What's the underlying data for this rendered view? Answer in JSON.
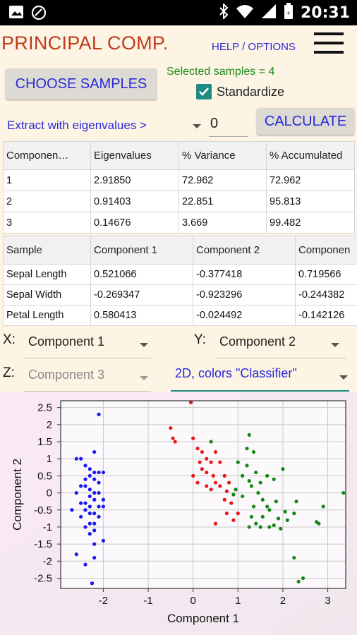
{
  "status_bar": {
    "time": "20:31",
    "icons": [
      "image-icon",
      "sync-icon",
      "bluetooth-icon",
      "wifi-icon",
      "signal-icon",
      "battery-icon"
    ]
  },
  "app": {
    "title": "PRINCIPAL COMP.",
    "help_label": "HELP / OPTIONS"
  },
  "controls": {
    "choose_samples_label": "CHOOSE SAMPLES",
    "selected_samples_text": "Selected samples = 4",
    "standardize_label": "Standardize",
    "standardize_checked": true,
    "extract_label": "Extract with eigenvalues >",
    "eigen_threshold": "0",
    "calculate_label": "CALCULATE"
  },
  "eigen_table": {
    "headers": [
      "Componen…",
      "Eigenvalues",
      "% Variance",
      "% Accumulated"
    ],
    "rows": [
      [
        "1",
        "2.91850",
        "72.962",
        "72.962"
      ],
      [
        "2",
        "0.91403",
        "22.851",
        "95.813"
      ],
      [
        "3",
        "0.14676",
        "3.669",
        "99.482"
      ]
    ]
  },
  "loadings_table": {
    "headers": [
      "Sample",
      "Component 1",
      "Component 2",
      "Componen"
    ],
    "rows": [
      [
        "Sepal Length",
        "0.521066",
        "-0.377418",
        "0.719566"
      ],
      [
        "Sepal Width",
        "-0.269347",
        "-0.923296",
        "-0.244382"
      ],
      [
        "Petal Length",
        "0.580413",
        "-0.024492",
        "-0.142126"
      ]
    ]
  },
  "axes_select": {
    "x_label": "X:",
    "x_value": "Component 1",
    "y_label": "Y:",
    "y_value": "Component 2",
    "z_label": "Z:",
    "z_value": "Component 3",
    "mode_value": "2D, colors \"Classifier\""
  },
  "colors": {
    "accent": "#1e8a84",
    "link": "#2a2ad8",
    "title": "#c23a1c",
    "green_text": "#1b8b1b"
  },
  "chart_data": {
    "type": "scatter",
    "xlabel": "Component 1",
    "ylabel": "Component 2",
    "xlim": [
      -2.95,
      3.4
    ],
    "ylim": [
      -2.8,
      2.7
    ],
    "xticks": [
      "-2",
      "-1",
      "0",
      "1",
      "2",
      "3"
    ],
    "xtick_values": [
      -2,
      -1,
      0,
      1,
      2,
      3
    ],
    "yticks": [
      "2.5",
      "2",
      "1.5",
      "1",
      "0.5",
      "0",
      "-0.5",
      "-1",
      "-1.5",
      "-2",
      "-2.5"
    ],
    "ytick_values": [
      2.5,
      2,
      1.5,
      1,
      0.5,
      0,
      -0.5,
      -1,
      -1.5,
      -2,
      -2.5
    ],
    "grid": true,
    "series": [
      {
        "color": "#1a1af0",
        "points": [
          [
            -2.1,
            2.3
          ],
          [
            -2.6,
            1.0
          ],
          [
            -2.5,
            1.0
          ],
          [
            -2.2,
            1.2
          ],
          [
            -2.4,
            0.8
          ],
          [
            -2.3,
            0.7
          ],
          [
            -2.2,
            0.6
          ],
          [
            -2.1,
            0.6
          ],
          [
            -2.0,
            0.6
          ],
          [
            -2.3,
            0.5
          ],
          [
            -2.4,
            0.4
          ],
          [
            -2.2,
            0.4
          ],
          [
            -2.1,
            0.3
          ],
          [
            -2.5,
            0.2
          ],
          [
            -2.4,
            0.2
          ],
          [
            -2.3,
            0.1
          ],
          [
            -2.2,
            0.0
          ],
          [
            -2.1,
            0.0
          ],
          [
            -2.6,
            0.0
          ],
          [
            -2.3,
            -0.1
          ],
          [
            -2.2,
            -0.2
          ],
          [
            -2.0,
            -0.2
          ],
          [
            -2.5,
            -0.3
          ],
          [
            -2.4,
            -0.3
          ],
          [
            -2.3,
            -0.4
          ],
          [
            -2.1,
            -0.4
          ],
          [
            -2.0,
            -0.4
          ],
          [
            -2.7,
            -0.5
          ],
          [
            -2.4,
            -0.5
          ],
          [
            -2.3,
            -0.6
          ],
          [
            -2.2,
            -0.6
          ],
          [
            -2.5,
            -0.7
          ],
          [
            -2.1,
            -0.7
          ],
          [
            -2.3,
            -0.9
          ],
          [
            -2.2,
            -0.9
          ],
          [
            -2.4,
            -1.0
          ],
          [
            -2.2,
            -1.1
          ],
          [
            -2.3,
            -1.2
          ],
          [
            -2.0,
            -1.4
          ],
          [
            -2.2,
            -1.5
          ],
          [
            -2.6,
            -1.8
          ],
          [
            -2.2,
            -1.9
          ],
          [
            -2.4,
            -2.1
          ],
          [
            -2.25,
            -2.65
          ]
        ]
      },
      {
        "color": "#e81818",
        "points": [
          [
            -0.05,
            2.65
          ],
          [
            -0.5,
            1.9
          ],
          [
            -0.45,
            1.6
          ],
          [
            -0.4,
            1.5
          ],
          [
            0.0,
            1.6
          ],
          [
            0.1,
            1.3
          ],
          [
            0.2,
            1.2
          ],
          [
            0.3,
            1.0
          ],
          [
            0.5,
            1.2
          ],
          [
            0.15,
            0.9
          ],
          [
            0.4,
            0.9
          ],
          [
            0.6,
            0.9
          ],
          [
            0.2,
            0.7
          ],
          [
            0.3,
            0.6
          ],
          [
            0.45,
            0.5
          ],
          [
            0.7,
            0.5
          ],
          [
            0.0,
            0.5
          ],
          [
            0.1,
            0.3
          ],
          [
            0.3,
            0.2
          ],
          [
            0.5,
            0.3
          ],
          [
            0.8,
            0.3
          ],
          [
            0.6,
            0.2
          ],
          [
            0.4,
            0.1
          ],
          [
            0.75,
            0.05
          ],
          [
            0.7,
            -0.2
          ],
          [
            0.85,
            -0.3
          ],
          [
            0.75,
            -0.6
          ],
          [
            1.0,
            -0.6
          ],
          [
            0.9,
            -0.8
          ],
          [
            0.5,
            -0.9
          ]
        ]
      },
      {
        "color": "#148714",
        "points": [
          [
            1.25,
            1.7
          ],
          [
            0.4,
            1.5
          ],
          [
            1.2,
            1.3
          ],
          [
            1.35,
            1.2
          ],
          [
            1.0,
            0.9
          ],
          [
            1.2,
            0.8
          ],
          [
            1.4,
            0.6
          ],
          [
            1.65,
            0.5
          ],
          [
            2.0,
            0.7
          ],
          [
            1.1,
            0.5
          ],
          [
            1.25,
            0.35
          ],
          [
            1.5,
            0.3
          ],
          [
            1.8,
            0.4
          ],
          [
            1.3,
            0.2
          ],
          [
            0.95,
            0.1
          ],
          [
            1.45,
            0.0
          ],
          [
            1.1,
            -0.1
          ],
          [
            0.9,
            -0.05
          ],
          [
            1.55,
            -0.2
          ],
          [
            1.85,
            -0.25
          ],
          [
            2.3,
            -0.25
          ],
          [
            1.35,
            -0.4
          ],
          [
            1.65,
            -0.4
          ],
          [
            1.7,
            -0.5
          ],
          [
            2.05,
            -0.55
          ],
          [
            2.25,
            -0.6
          ],
          [
            1.3,
            -0.7
          ],
          [
            1.55,
            -0.7
          ],
          [
            1.9,
            -0.75
          ],
          [
            2.1,
            -0.8
          ],
          [
            1.4,
            -0.9
          ],
          [
            1.8,
            -0.95
          ],
          [
            1.95,
            -1.05
          ],
          [
            1.5,
            -1.0
          ],
          [
            1.25,
            -1.0
          ],
          [
            2.75,
            -0.85
          ],
          [
            2.8,
            -0.9
          ],
          [
            2.9,
            -0.4
          ],
          [
            3.35,
            0.0
          ],
          [
            2.25,
            -1.9
          ],
          [
            2.35,
            -2.6
          ],
          [
            2.45,
            -2.5
          ],
          [
            1.7,
            -1.0
          ]
        ]
      }
    ]
  }
}
